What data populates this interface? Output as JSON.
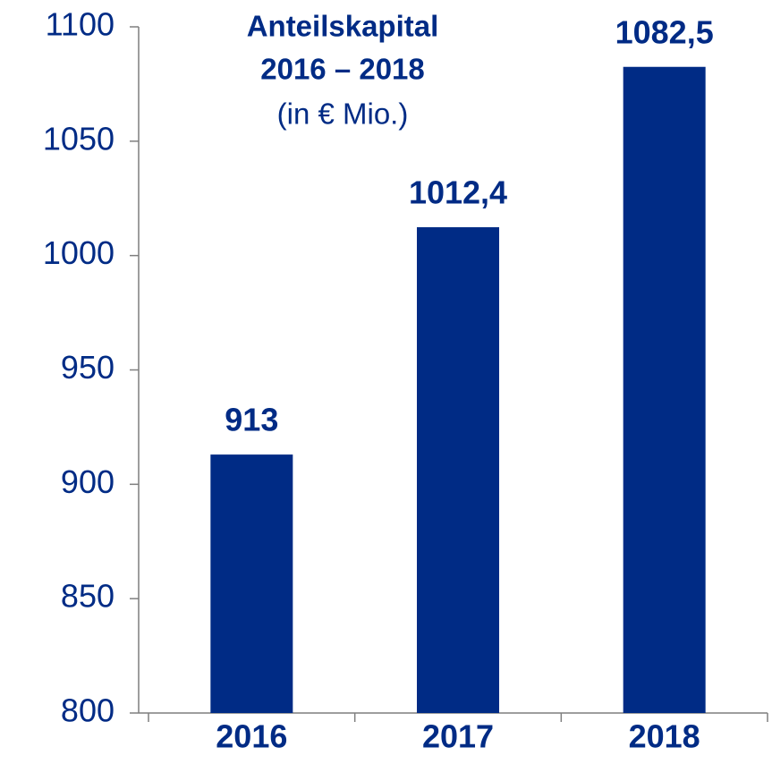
{
  "chart_data": {
    "type": "bar",
    "title": [
      "Anteilskapital",
      "2016 – 2018"
    ],
    "subtitle": "(in € Mio.)",
    "categories": [
      "2016",
      "2017",
      "2018"
    ],
    "values": [
      913,
      1012.4,
      1082.5
    ],
    "value_labels": [
      "913",
      "1012,4",
      "1082,5"
    ],
    "color": "#002b85",
    "ylim": [
      800,
      1100
    ],
    "yticks": [
      800,
      850,
      900,
      950,
      1000,
      1050,
      1100
    ],
    "grid": false
  }
}
